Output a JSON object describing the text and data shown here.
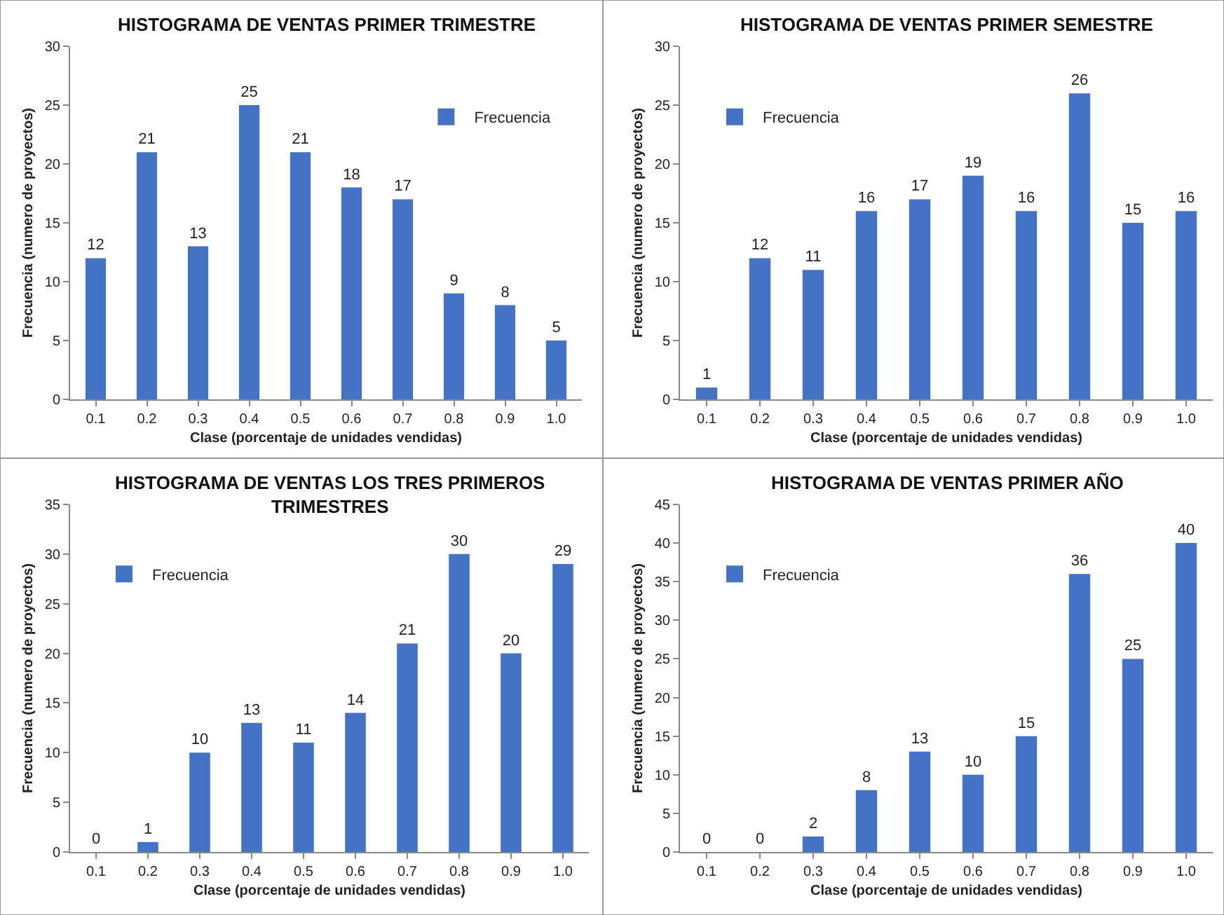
{
  "chart_data": [
    {
      "type": "bar",
      "title": "HISTOGRAMA DE VENTAS PRIMER TRIMESTRE",
      "xlabel": "Clase (porcentaje de unidades vendidas)",
      "ylabel": "Frecuencia (numero de proyectos)",
      "categories": [
        "0.1",
        "0.2",
        "0.3",
        "0.4",
        "0.5",
        "0.6",
        "0.7",
        "0.8",
        "0.9",
        "1.0"
      ],
      "series": [
        {
          "name": "Frecuencia",
          "color": "#4472c4",
          "values": [
            12,
            21,
            13,
            25,
            21,
            18,
            17,
            9,
            8,
            5
          ]
        }
      ],
      "ylim": [
        0,
        30
      ],
      "yticks": [
        0,
        5,
        10,
        15,
        20,
        25,
        30
      ],
      "data_labels": true,
      "legend": "top right"
    },
    {
      "type": "bar",
      "title": "HISTOGRAMA DE VENTAS PRIMER SEMESTRE",
      "xlabel": "Clase (porcentaje de unidades vendidas)",
      "ylabel": "Frecuencia (numero de proyectos)",
      "categories": [
        "0.1",
        "0.2",
        "0.3",
        "0.4",
        "0.5",
        "0.6",
        "0.7",
        "0.8",
        "0.9",
        "1.0"
      ],
      "series": [
        {
          "name": "Frecuencia",
          "color": "#4472c4",
          "values": [
            1,
            12,
            11,
            16,
            17,
            19,
            16,
            26,
            15,
            16
          ]
        }
      ],
      "ylim": [
        0,
        30
      ],
      "yticks": [
        0,
        5,
        10,
        15,
        20,
        25,
        30
      ],
      "data_labels": true,
      "legend": "top left"
    },
    {
      "type": "bar",
      "title": "HISTOGRAMA DE VENTAS LOS TRES PRIMEROS TRIMESTRES",
      "xlabel": "Clase (porcentaje de unidades vendidas)",
      "ylabel": "Frecuencia (numero de proyectos)",
      "categories": [
        "0.1",
        "0.2",
        "0.3",
        "0.4",
        "0.5",
        "0.6",
        "0.7",
        "0.8",
        "0.9",
        "1.0"
      ],
      "series": [
        {
          "name": "Frecuencia",
          "color": "#4472c4",
          "values": [
            0,
            1,
            10,
            13,
            11,
            14,
            21,
            30,
            20,
            29
          ]
        }
      ],
      "ylim": [
        0,
        35
      ],
      "yticks": [
        0,
        5,
        10,
        15,
        20,
        25,
        30,
        35
      ],
      "data_labels": true,
      "legend": "top left"
    },
    {
      "type": "bar",
      "title": "HISTOGRAMA DE VENTAS PRIMER AÑO",
      "xlabel": "Clase (porcentaje de unidades vendidas)",
      "ylabel": "Frecuencia (numero de proyectos)",
      "categories": [
        "0.1",
        "0.2",
        "0.3",
        "0.4",
        "0.5",
        "0.6",
        "0.7",
        "0.8",
        "0.9",
        "1.0"
      ],
      "series": [
        {
          "name": "Frecuencia",
          "color": "#4472c4",
          "values": [
            0,
            0,
            2,
            8,
            13,
            10,
            15,
            36,
            25,
            40
          ]
        }
      ],
      "ylim": [
        0,
        45
      ],
      "yticks": [
        0,
        5,
        10,
        15,
        20,
        25,
        30,
        35,
        40,
        45
      ],
      "data_labels": true,
      "legend": "top left"
    }
  ]
}
